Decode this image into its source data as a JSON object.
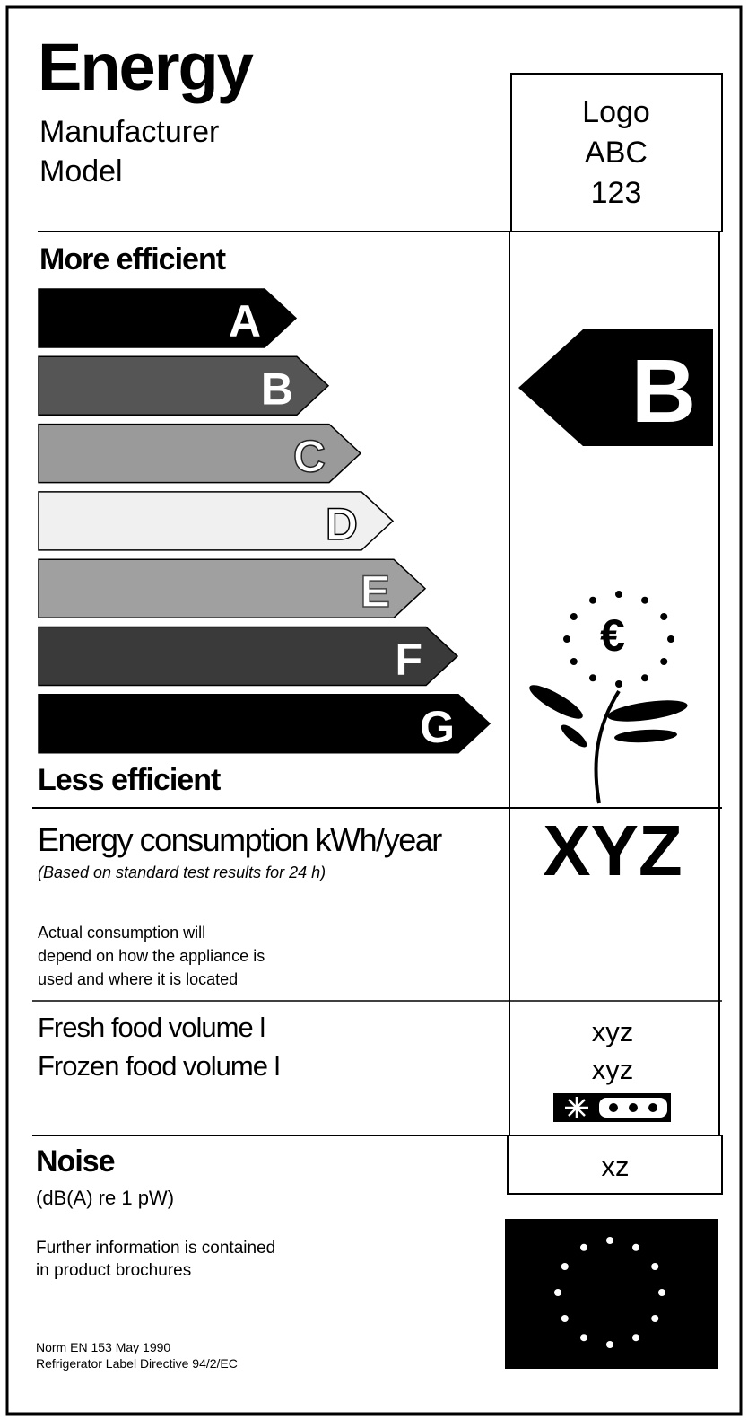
{
  "header": {
    "title": "Energy",
    "manufacturer": "Manufacturer",
    "model": "Model",
    "logo_lines": [
      "Logo",
      "ABC",
      "123"
    ]
  },
  "scale": {
    "more": "More efficient",
    "less": "Less efficient",
    "classes": [
      "A",
      "B",
      "C",
      "D",
      "E",
      "F",
      "G"
    ],
    "rating": "B"
  },
  "consumption": {
    "label": "Energy consumption kWh/year",
    "note": "(Based on standard test results for 24 h)",
    "disclaimer": [
      "Actual consumption will",
      "depend on how the appliance is",
      "used and where it is located"
    ],
    "value": "XYZ"
  },
  "volumes": {
    "fresh_label": "Fresh food volume l",
    "frozen_label": "Frozen food volume l",
    "fresh_value": "xyz",
    "frozen_value": "xyz"
  },
  "noise": {
    "label": "Noise",
    "unit": "(dB(A) re 1 pW)",
    "value": "xz"
  },
  "footer": {
    "info": [
      "Further information is contained",
      "in product brochures"
    ],
    "norm": [
      "Norm EN 153 May 1990",
      "Refrigerator Label Directive 94/2/EC"
    ]
  }
}
